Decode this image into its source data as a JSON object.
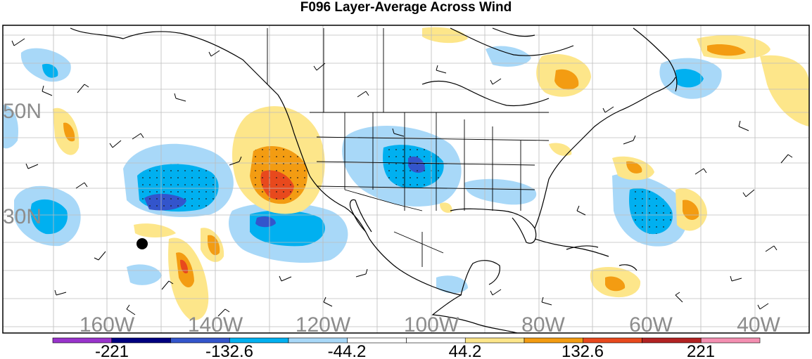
{
  "title": "F096 Layer-Average Across Wind",
  "lat_labels": [
    "50N",
    "30N"
  ],
  "lon_labels": [
    "160W",
    "140W",
    "120W",
    "100W",
    "80W",
    "60W",
    "40W"
  ],
  "colorbar": {
    "colors": [
      "#9933cc",
      "#000080",
      "#3355cc",
      "#00b0f0",
      "#a8d8f8",
      "#ffffff",
      "#ffffff",
      "#fde68a",
      "#f39c12",
      "#e8491d",
      "#b22222",
      "#f48fb1"
    ],
    "labels": [
      "-221",
      "-132.6",
      "-44.2",
      "44.2",
      "132.6",
      "221"
    ]
  }
}
